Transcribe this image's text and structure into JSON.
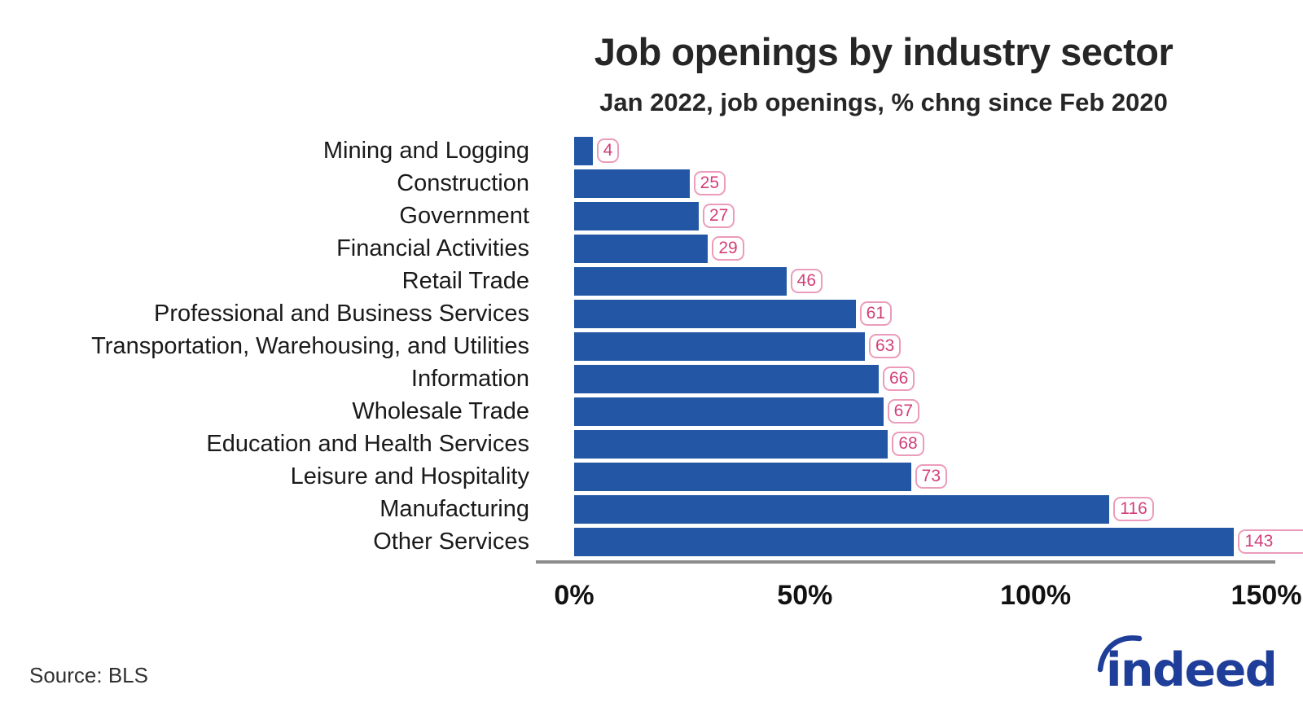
{
  "header": {
    "title": "Job openings by industry sector",
    "subtitle": "Jan 2022, job openings, % chng since Feb 2020"
  },
  "chart_data": {
    "type": "bar",
    "orientation": "horizontal",
    "title": "Job openings by industry sector",
    "subtitle": "Jan 2022, job openings, % chng since Feb 2020",
    "categories": [
      "Mining and Logging",
      "Construction",
      "Government",
      "Financial Activities",
      "Retail Trade",
      "Professional and Business Services",
      "Transportation, Warehousing, and Utilities",
      "Information",
      "Wholesale Trade",
      "Education and Health Services",
      "Leisure and Hospitality",
      "Manufacturing",
      "Other Services"
    ],
    "values": [
      4,
      25,
      27,
      29,
      46,
      61,
      63,
      66,
      67,
      68,
      73,
      116,
      143
    ],
    "unit": "% change since Feb 2020",
    "xlim": [
      0,
      150
    ],
    "x_tick_values": [
      0,
      50,
      100,
      150
    ],
    "x_tick_labels": [
      "0%",
      "50%",
      "100%",
      "150%"
    ],
    "grid": false,
    "legend": false,
    "colors": {
      "bar": "#2357A5",
      "badge_text": "#D23E78",
      "badge_border": "#EC9CBB",
      "axis_line": "#8C8C8C"
    }
  },
  "footer": {
    "source": "Source: BLS",
    "logo_text": "indeed",
    "logo_color": "#1E3E99"
  }
}
